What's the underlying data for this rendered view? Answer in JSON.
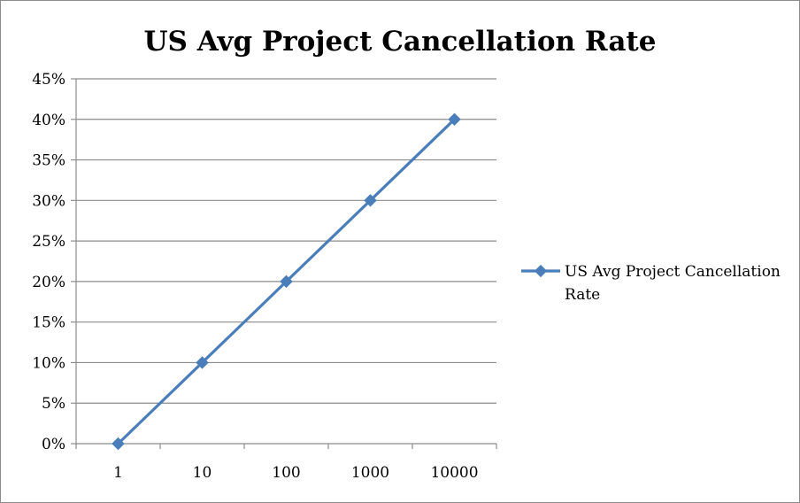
{
  "chart_data": {
    "type": "line",
    "title": "US Avg Project Cancellation Rate",
    "xlabel": "",
    "ylabel": "",
    "categories": [
      "1",
      "10",
      "100",
      "1000",
      "10000"
    ],
    "series": [
      {
        "name": "US Avg Project Cancellation Rate",
        "values": [
          0,
          10,
          20,
          30,
          40
        ],
        "color": "#4a7ebb",
        "marker": "diamond"
      }
    ],
    "ylim": [
      0,
      45
    ],
    "yticks": [
      0,
      5,
      10,
      15,
      20,
      25,
      30,
      35,
      40,
      45
    ],
    "ytick_labels": [
      "0%",
      "5%",
      "10%",
      "15%",
      "20%",
      "25%",
      "30%",
      "35%",
      "40%",
      "45%"
    ],
    "grid": true,
    "legend_position": "right",
    "legend_lines": [
      "US Avg Project Cancellation",
      "Rate"
    ]
  }
}
